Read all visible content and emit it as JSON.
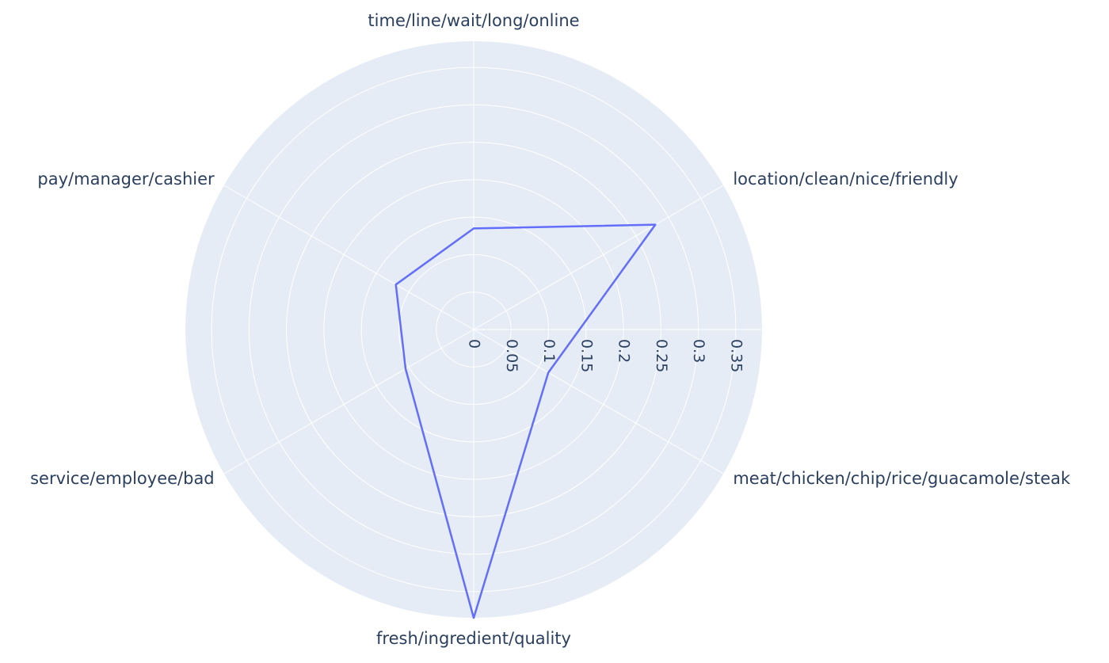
{
  "chart_data": {
    "type": "radar",
    "categories": [
      "time/line/wait/long/online",
      "location/clean/nice/friendly",
      "meat/chicken/chip/rice/guacamole/steak",
      "fresh/ingredient/quality",
      "service/employee/bad",
      "pay/manager/cashier"
    ],
    "series": [
      {
        "values": [
          0.135,
          0.28,
          0.115,
          0.385,
          0.105,
          0.12
        ]
      }
    ],
    "radial_range": [
      0,
      0.385
    ],
    "radial_ticks": [
      "0",
      "0.05",
      "0.1",
      "0.15",
      "0.2",
      "0.25",
      "0.3",
      "0.35"
    ],
    "radial_tick_values": [
      0,
      0.05,
      0.1,
      0.15,
      0.2,
      0.25,
      0.3,
      0.35
    ],
    "grid": true,
    "colors": {
      "background": "#e5ecf6",
      "grid": "#ffffff",
      "line": "#636efa",
      "text": "#2a3f5f"
    }
  }
}
